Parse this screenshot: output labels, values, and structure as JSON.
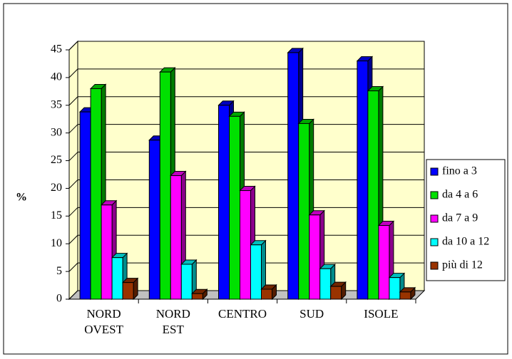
{
  "chart_data": {
    "type": "bar3d",
    "categories": [
      "NORD OVEST",
      "NORD EST",
      "CENTRO",
      "SUD",
      "ISOLE"
    ],
    "series": [
      {
        "name": "fino a 3",
        "color": "#0000ff",
        "values": [
          33.8,
          28.7,
          35,
          44.5,
          43
        ]
      },
      {
        "name": "da 4 a 6",
        "color": "#00e000",
        "values": [
          38,
          41,
          33,
          31.7,
          37.6
        ]
      },
      {
        "name": "da 7 a 9",
        "color": "#ff00ff",
        "values": [
          17,
          22.3,
          19.6,
          15.2,
          13.3
        ]
      },
      {
        "name": "da 10 a 12",
        "color": "#00ffff",
        "values": [
          7.5,
          6.3,
          9.8,
          5.5,
          3.9
        ]
      },
      {
        "name": "più di 12",
        "color": "#993300",
        "values": [
          3,
          1,
          1.8,
          2.3,
          1.3
        ]
      }
    ],
    "y_label": "%",
    "ylim": [
      0,
      45
    ],
    "yticks": [
      0,
      5,
      10,
      15,
      20,
      25,
      30,
      35,
      40,
      45
    ],
    "grid": true,
    "legend": "right"
  }
}
